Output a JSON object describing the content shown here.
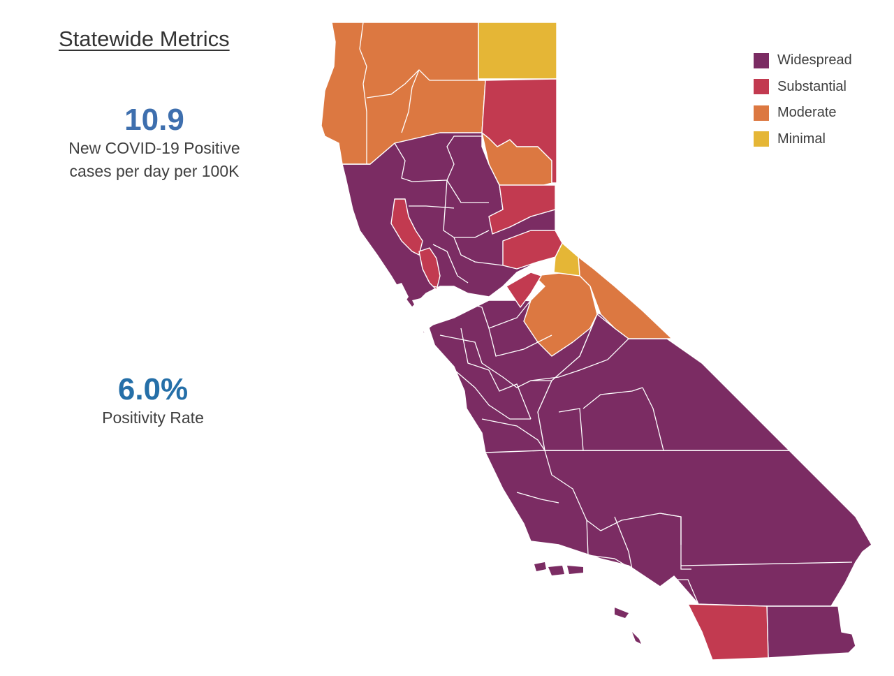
{
  "title": "Statewide Metrics",
  "metrics": {
    "cases_value": "10.9",
    "cases_label_line1": "New COVID-19 Positive",
    "cases_label_line2": "cases per day per 100K",
    "positivity_value": "6.0%",
    "positivity_label": "Positivity Rate"
  },
  "colors": {
    "widespread": "#7b2c63",
    "substantial": "#c23a50",
    "moderate": "#dc7841",
    "minimal": "#e5b636"
  },
  "legend": [
    {
      "label": "Widespread",
      "tier": "widespread"
    },
    {
      "label": "Substantial",
      "tier": "substantial"
    },
    {
      "label": "Moderate",
      "tier": "moderate"
    },
    {
      "label": "Minimal",
      "tier": "minimal"
    }
  ]
}
